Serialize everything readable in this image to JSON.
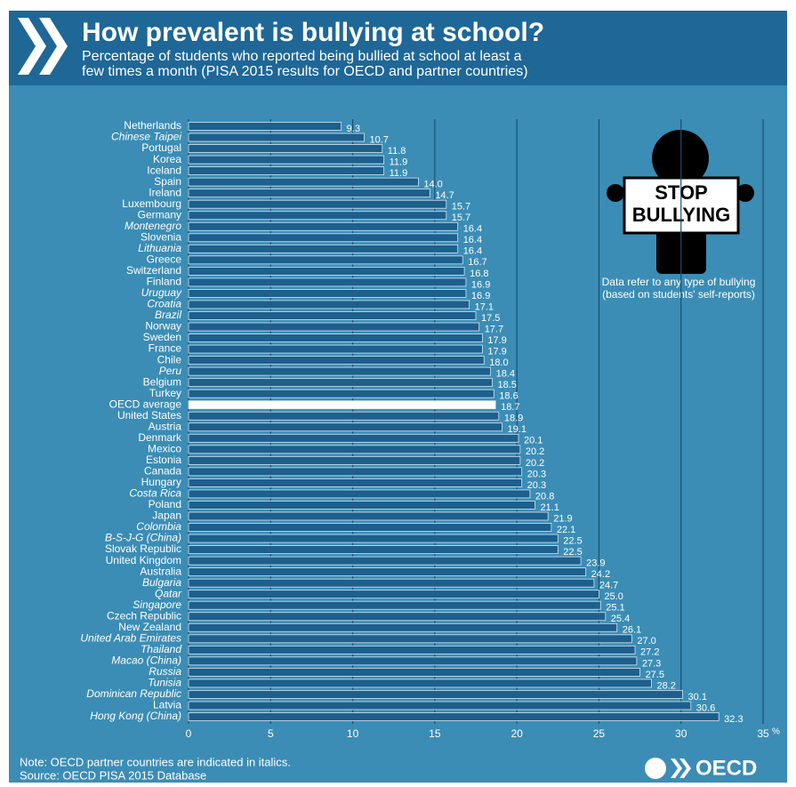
{
  "chart_data": {
    "type": "bar",
    "orientation": "horizontal",
    "title": "How prevalent is bullying at school?",
    "subtitle": [
      "Percentage of students who reported being bullied at school at least a",
      "few times a month (PISA 2015 results for OECD and partner countries)"
    ],
    "categories": [
      "Netherlands",
      "Chinese Taipei",
      "Portugal",
      "Korea",
      "Iceland",
      "Spain",
      "Ireland",
      "Luxembourg",
      "Germany",
      "Montenegro",
      "Slovenia",
      "Lithuania",
      "Greece",
      "Switzerland",
      "Finland",
      "Uruguay",
      "Croatia",
      "Brazil",
      "Norway",
      "Sweden",
      "France",
      "Chile",
      "Peru",
      "Belgium",
      "Turkey",
      "OECD average",
      "United States",
      "Austria",
      "Denmark",
      "Mexico",
      "Estonia",
      "Canada",
      "Hungary",
      "Costa Rica",
      "Poland",
      "Japan",
      "Colombia",
      "B-S-J-G (China)",
      "Slovak Republic",
      "United Kingdom",
      "Australia",
      "Bulgaria",
      "Qatar",
      "Singapore",
      "Czech Republic",
      "New Zealand",
      "United Arab Emirates",
      "Thailand",
      "Macao (China)",
      "Russia",
      "Tunisia",
      "Dominican Republic",
      "Latvia",
      "Hong Kong (China)"
    ],
    "italic": [
      false,
      true,
      false,
      false,
      false,
      false,
      false,
      false,
      false,
      true,
      false,
      true,
      false,
      false,
      false,
      true,
      true,
      true,
      false,
      false,
      false,
      false,
      true,
      false,
      false,
      false,
      false,
      false,
      false,
      false,
      false,
      false,
      false,
      true,
      false,
      false,
      true,
      true,
      false,
      false,
      false,
      true,
      true,
      true,
      false,
      false,
      true,
      true,
      true,
      true,
      true,
      true,
      false,
      true
    ],
    "values": [
      9.3,
      10.7,
      11.8,
      11.9,
      11.9,
      14.0,
      14.7,
      15.7,
      15.7,
      16.4,
      16.4,
      16.4,
      16.7,
      16.8,
      16.9,
      16.9,
      17.1,
      17.5,
      17.7,
      17.9,
      17.9,
      18.0,
      18.4,
      18.5,
      18.6,
      18.7,
      18.9,
      19.1,
      20.1,
      20.2,
      20.2,
      20.3,
      20.3,
      20.8,
      21.1,
      21.9,
      22.1,
      22.5,
      22.5,
      23.9,
      24.2,
      24.7,
      25.0,
      25.1,
      25.4,
      26.1,
      27.0,
      27.2,
      27.3,
      27.5,
      28.2,
      30.1,
      30.6,
      32.3
    ],
    "value_labels": [
      "9.3",
      "10.7",
      "11.8",
      "11.9",
      "11.9",
      "14.0",
      "14.7",
      "15.7",
      "15.7",
      "16.4",
      "16.4",
      "16.4",
      "16.7",
      "16.8",
      "16.9",
      "16.9",
      "17.1",
      "17.5",
      "17.7",
      "17.9",
      "17.9",
      "18.0",
      "18.4",
      "18.5",
      "18.6",
      "18.7",
      "18.9",
      "19.1",
      "20.1",
      "20.2",
      "20.2",
      "20.3",
      "20.3",
      "20.8",
      "21.1",
      "21.9",
      "22.1",
      "22.5",
      "22.5",
      "23.9",
      "24.2",
      "24.7",
      "25.0",
      "25.1",
      "25.4",
      "26.1",
      "27.0",
      "27.2",
      "27.3",
      "27.5",
      "28.2",
      "30.1",
      "30.6",
      "32.3"
    ],
    "color": "#1d5f8d",
    "highlight_index": 25,
    "highlight_color": "#ffffff",
    "xlim": [
      0,
      35
    ],
    "xticks": [
      0,
      5,
      10,
      15,
      20,
      25,
      30,
      35
    ],
    "axis_unit": "%",
    "grid": true,
    "sign": [
      "STOP",
      "BULLYING"
    ],
    "annotation": [
      "Data refer to any type of bullying",
      "(based on students' self-reports)"
    ],
    "note": "Note: OECD partner countries are indicated in italics.",
    "source": "Source: OECD PISA 2015 Database",
    "logo": "OECD"
  }
}
